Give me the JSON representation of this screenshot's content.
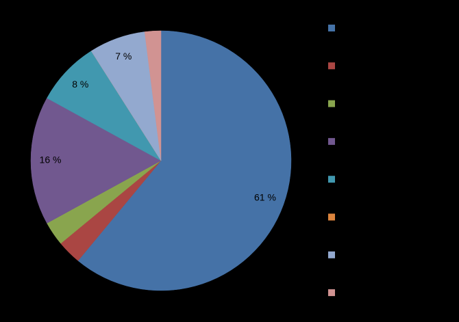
{
  "chart_data": {
    "type": "pie",
    "values": [
      61,
      3,
      3,
      16,
      8,
      0,
      7,
      2
    ],
    "value_labels": [
      "61 %",
      null,
      null,
      "16 %",
      "8 %",
      null,
      "7 %",
      null
    ],
    "colors": [
      "#4572a7",
      "#aa4643",
      "#89a54e",
      "#71588f",
      "#4198af",
      "#db843d",
      "#93a9cf",
      "#d19392"
    ]
  }
}
